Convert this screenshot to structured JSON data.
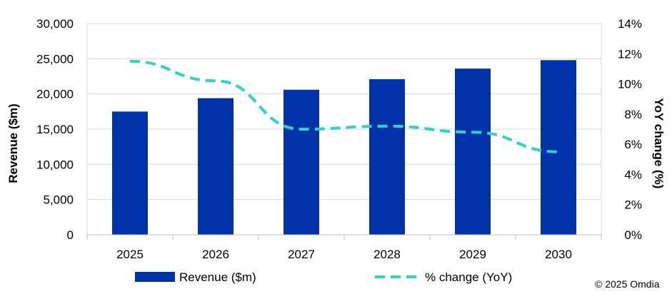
{
  "chart_data": {
    "type": "bar",
    "categories": [
      "2025",
      "2026",
      "2027",
      "2028",
      "2029",
      "2030"
    ],
    "series": [
      {
        "name": "Revenue ($m)",
        "type": "bar",
        "axis": "left",
        "color": "#0033AA",
        "values": [
          17500,
          19400,
          20600,
          22100,
          23600,
          24800
        ]
      },
      {
        "name": "% change (YoY)",
        "type": "line",
        "style": "dashed",
        "axis": "right",
        "color": "#2ED3C6",
        "values": [
          11.5,
          10.2,
          7.0,
          7.2,
          6.8,
          5.5
        ]
      }
    ],
    "ylabel": "Revenue ($m)",
    "ylabel_right": "YoY change (%)",
    "ylim": [
      0,
      30000
    ],
    "ylim_right": [
      0,
      14
    ],
    "yticks": [
      "0",
      "5,000",
      "10,000",
      "15,000",
      "20,000",
      "25,000",
      "30,000"
    ],
    "yticks_right": [
      "0%",
      "2%",
      "4%",
      "6%",
      "8%",
      "10%",
      "12%",
      "14%"
    ],
    "grid": true,
    "legend": "bottom"
  },
  "copyright": "© 2025 Omdia"
}
